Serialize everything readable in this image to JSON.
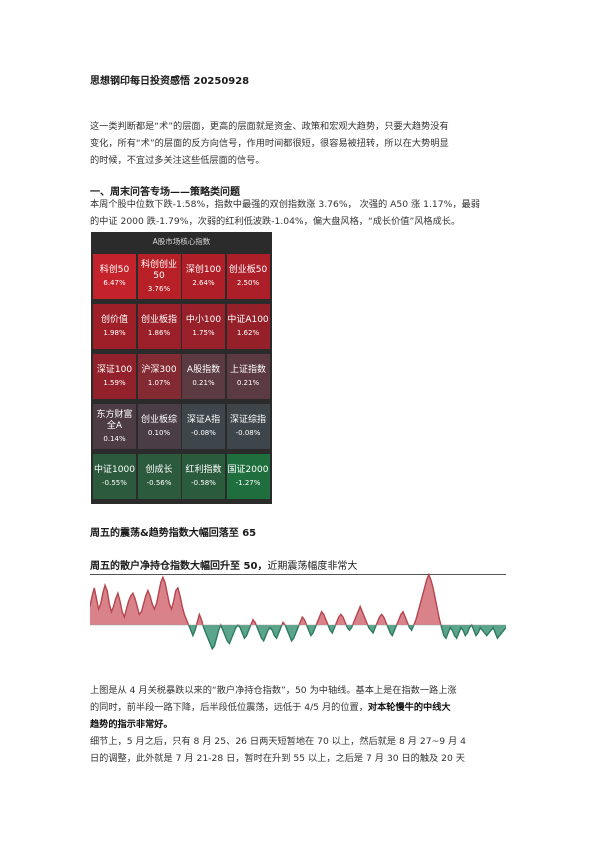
{
  "doc": {
    "title": "思想钢印每日投资感悟 20250928",
    "intro": [
      "这一类判断都是“术”的层面，更高的层面就是资金、政策和宏观大趋势，只要大趋势没有",
      "变化，所有“术”的层面的反方向信号，作用时间都很短，很容易被扭转，所以在大势明显",
      "的时候，不宜过多关注这些低层面的信号。"
    ],
    "section1_title": "一、周末问答专场——策略类问题",
    "section1_text": [
      "本周个股中位数下跌-1.58%，指数中最强的双创指数涨 3.76%， 次强的 A50 涨 1.17%，最弱",
      "的中证 2000 跌-1.79%，次弱的红利低波跌-1.04%，偏大盘风格，“成长价值”风格成长。"
    ],
    "heatmap": {
      "title": "A股市场核心指数",
      "cells": [
        {
          "name": "科创50",
          "value": "6.47%",
          "color": "#c4232c"
        },
        {
          "name": "科创创业50",
          "value": "3.76%",
          "color": "#b82028"
        },
        {
          "name": "深创100",
          "value": "2.64%",
          "color": "#b01e27"
        },
        {
          "name": "创业板50",
          "value": "2.50%",
          "color": "#ad1f28"
        },
        {
          "name": "创价值",
          "value": "1.98%",
          "color": "#9f1f28"
        },
        {
          "name": "创业板指",
          "value": "1.86%",
          "color": "#9b1f29"
        },
        {
          "name": "中小100",
          "value": "1.75%",
          "color": "#98202a"
        },
        {
          "name": "中证A100",
          "value": "1.62%",
          "color": "#96202a"
        },
        {
          "name": "深证100",
          "value": "1.59%",
          "color": "#93212b"
        },
        {
          "name": "沪深300",
          "value": "1.07%",
          "color": "#842a33"
        },
        {
          "name": "A股指数",
          "value": "0.21%",
          "color": "#5c3a41"
        },
        {
          "name": "上证指数",
          "value": "0.21%",
          "color": "#5c3a41"
        },
        {
          "name": "东方财富全A",
          "value": "0.14%",
          "color": "#4e3c44"
        },
        {
          "name": "创业板综",
          "value": "0.10%",
          "color": "#4a3d45"
        },
        {
          "name": "深证A指",
          "value": "-0.08%",
          "color": "#3e464b"
        },
        {
          "name": "深证综指",
          "value": "-0.08%",
          "color": "#3e464b"
        },
        {
          "name": "中证1000",
          "value": "-0.55%",
          "color": "#2b5a3d"
        },
        {
          "name": "创成长",
          "value": "-0.56%",
          "color": "#2b5a3d"
        },
        {
          "name": "红利指数",
          "value": "-0.58%",
          "color": "#2a5b3c"
        },
        {
          "name": "国证2000",
          "value": "-1.27%",
          "color": "#1f6e3d"
        }
      ]
    },
    "section2_title": "周五的震荡&趋势指数大幅回落至 65",
    "section3_title": "周五的散户净持仓指数大幅回升至 50，",
    "section3_rest": "近期震荡幅度非常大",
    "para_a": [
      "上图是从 4 月关税暴跌以来的“散户净持仓指数”，50 为中轴线。基本上是在指数一路上涨",
      "的同时，前半段一路下降，后半段低位震荡，远低于 4/5 月的位置，"
    ],
    "para_a_bold1": "对本轮慢牛的中线大",
    "para_a_bold2": "趋势的指示非常好。",
    "para_b": [
      "细节上，5 月之后，只有 8 月 25、26 日两天短暂地在 70 以上，然后就是 8 月 27~9 月 4",
      "日的调整，此外就是 7 月 21-28 日，暂时在升到 55 以上，之后是 7 月 30 日的触及 20 天"
    ]
  },
  "chart_data": {
    "type": "area",
    "title": "",
    "xlabel": "",
    "ylabel": "",
    "baseline": 50,
    "ylim": [
      10,
      90
    ],
    "colors": {
      "above": "#d9828a",
      "below": "#5aa58c",
      "line_above": "#b5454f",
      "line_below": "#2f7a5f"
    },
    "values": [
      64,
      72,
      78,
      70,
      62,
      66,
      74,
      80,
      76,
      66,
      60,
      64,
      70,
      74,
      68,
      60,
      56,
      62,
      68,
      72,
      74,
      70,
      64,
      58,
      60,
      66,
      72,
      76,
      72,
      66,
      62,
      66,
      74,
      82,
      86,
      82,
      74,
      66,
      62,
      68,
      76,
      78,
      72,
      64,
      58,
      54,
      50,
      46,
      42,
      46,
      52,
      58,
      54,
      48,
      44,
      40,
      36,
      32,
      34,
      40,
      46,
      50,
      46,
      42,
      38,
      36,
      40,
      44,
      48,
      50,
      48,
      44,
      40,
      42,
      46,
      50,
      54,
      52,
      48,
      44,
      40,
      38,
      42,
      46,
      48,
      46,
      42,
      40,
      44,
      48,
      52,
      50,
      46,
      42,
      38,
      40,
      44,
      48,
      52,
      56,
      54,
      50,
      46,
      42,
      44,
      48,
      52,
      56,
      60,
      58,
      54,
      50,
      46,
      44,
      48,
      52,
      56,
      58,
      56,
      52,
      48,
      46,
      48,
      52,
      56,
      60,
      64,
      60,
      56,
      52,
      48,
      46,
      44,
      48,
      52,
      56,
      58,
      56,
      52,
      48,
      44,
      42,
      46,
      50,
      54,
      58,
      60,
      56,
      52,
      48,
      46,
      50,
      54,
      60,
      66,
      72,
      78,
      84,
      88,
      84,
      78,
      70,
      62,
      54,
      48,
      42,
      40,
      44,
      48,
      46,
      42,
      40,
      44,
      48,
      46,
      42,
      44,
      48,
      50,
      46,
      42,
      44,
      48,
      46,
      44,
      42,
      44,
      46,
      48,
      44,
      40,
      42,
      44,
      46,
      48
    ]
  }
}
